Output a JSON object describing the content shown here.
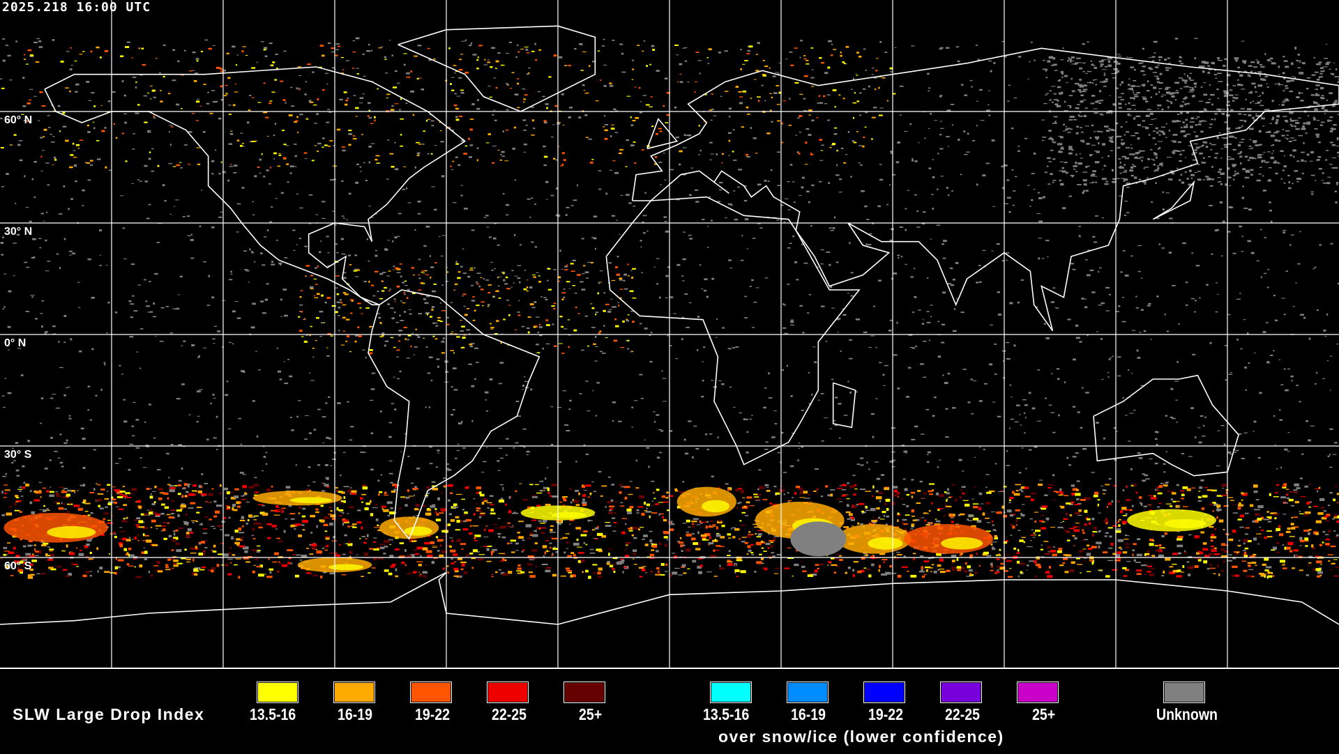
{
  "header": {
    "timestamp": "2025.218 16:00 UTC"
  },
  "map": {
    "projection": "equirectangular",
    "grid_spacing_degrees": 30,
    "lat_labels": [
      "60° N",
      "30° N",
      "0° N",
      "30° S",
      "60° S"
    ],
    "background_color": "#000000",
    "coastline_color": "#ffffff"
  },
  "legend": {
    "title": "SLW Large Drop Index",
    "main_scale": [
      {
        "label": "13.5-16",
        "color": "#ffff00"
      },
      {
        "label": "16-19",
        "color": "#ffaa00"
      },
      {
        "label": "19-22",
        "color": "#ff5500"
      },
      {
        "label": "22-25",
        "color": "#ee0000"
      },
      {
        "label": "25+",
        "color": "#660000"
      }
    ],
    "snow_ice_scale": [
      {
        "label": "13.5-16",
        "color": "#00ffff"
      },
      {
        "label": "16-19",
        "color": "#008cff"
      },
      {
        "label": "19-22",
        "color": "#0000ff"
      },
      {
        "label": "22-25",
        "color": "#7700dd"
      },
      {
        "label": "25+",
        "color": "#c800c8"
      }
    ],
    "snow_ice_caption": "over snow/ice (lower confidence)",
    "unknown": {
      "label": "Unknown",
      "color": "#808080"
    }
  }
}
